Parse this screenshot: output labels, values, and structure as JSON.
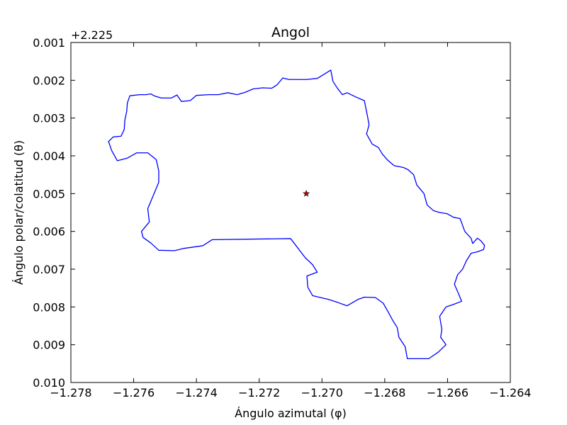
{
  "chart_data": {
    "type": "line",
    "title": "Angol",
    "xlabel": "Ángulo azimutal (φ)",
    "ylabel": "Ángulo polar/colatitud (θ)",
    "y_offset_text": "+2.225",
    "xlim": [
      -1.278,
      -1.264
    ],
    "ylim": [
      0.01,
      0.001
    ],
    "y_inverted": true,
    "grid": false,
    "xticks": [
      -1.278,
      -1.276,
      -1.274,
      -1.272,
      -1.27,
      -1.268,
      -1.266,
      -1.264
    ],
    "xtick_labels": [
      "−1.278",
      "−1.276",
      "−1.274",
      "−1.272",
      "−1.270",
      "−1.268",
      "−1.266",
      "−1.264"
    ],
    "yticks": [
      0.001,
      0.002,
      0.003,
      0.004,
      0.005,
      0.006,
      0.007,
      0.008,
      0.009,
      0.01
    ],
    "ytick_labels": [
      "0.001",
      "0.002",
      "0.003",
      "0.004",
      "0.005",
      "0.006",
      "0.007",
      "0.008",
      "0.009",
      "0.010"
    ],
    "series": [
      {
        "type": "line",
        "color": "#0000ff",
        "points": [
          [
            -1.27535,
            0.00241
          ],
          [
            -1.27512,
            0.00247
          ],
          [
            -1.2748,
            0.00247
          ],
          [
            -1.27462,
            0.00239
          ],
          [
            -1.27448,
            0.00256
          ],
          [
            -1.2742,
            0.00254
          ],
          [
            -1.274,
            0.0024
          ],
          [
            -1.2736,
            0.00238
          ],
          [
            -1.2733,
            0.00238
          ],
          [
            -1.273,
            0.00233
          ],
          [
            -1.2727,
            0.00238
          ],
          [
            -1.27245,
            0.00232
          ],
          [
            -1.2722,
            0.00223
          ],
          [
            -1.2719,
            0.0022
          ],
          [
            -1.2716,
            0.00221
          ],
          [
            -1.27143,
            0.00212
          ],
          [
            -1.27125,
            0.00194
          ],
          [
            -1.27105,
            0.00198
          ],
          [
            -1.2705,
            0.00198
          ],
          [
            -1.27015,
            0.00195
          ],
          [
            -1.26995,
            0.00185
          ],
          [
            -1.26972,
            0.00173
          ],
          [
            -1.26965,
            0.00203
          ],
          [
            -1.2695,
            0.00222
          ],
          [
            -1.26935,
            0.00238
          ],
          [
            -1.2692,
            0.00233
          ],
          [
            -1.2689,
            0.00245
          ],
          [
            -1.26865,
            0.00254
          ],
          [
            -1.26855,
            0.00295
          ],
          [
            -1.2685,
            0.00318
          ],
          [
            -1.26858,
            0.00342
          ],
          [
            -1.2684,
            0.00369
          ],
          [
            -1.2682,
            0.00378
          ],
          [
            -1.26808,
            0.00395
          ],
          [
            -1.2679,
            0.00412
          ],
          [
            -1.2677,
            0.00426
          ],
          [
            -1.2674,
            0.00431
          ],
          [
            -1.26725,
            0.00437
          ],
          [
            -1.26708,
            0.0045
          ],
          [
            -1.26698,
            0.00477
          ],
          [
            -1.26675,
            0.005
          ],
          [
            -1.26665,
            0.0053
          ],
          [
            -1.26645,
            0.00545
          ],
          [
            -1.26625,
            0.0055
          ],
          [
            -1.26602,
            0.00553
          ],
          [
            -1.2658,
            0.00563
          ],
          [
            -1.2656,
            0.00566
          ],
          [
            -1.26545,
            0.006
          ],
          [
            -1.26525,
            0.00618
          ],
          [
            -1.2652,
            0.00632
          ],
          [
            -1.26505,
            0.00618
          ],
          [
            -1.26495,
            0.00624
          ],
          [
            -1.26482,
            0.00637
          ],
          [
            -1.26485,
            0.00648
          ],
          [
            -1.26505,
            0.00654
          ],
          [
            -1.26525,
            0.00658
          ],
          [
            -1.2654,
            0.00678
          ],
          [
            -1.26552,
            0.007
          ],
          [
            -1.26568,
            0.00715
          ],
          [
            -1.26578,
            0.0074
          ],
          [
            -1.26565,
            0.00765
          ],
          [
            -1.26555,
            0.00785
          ],
          [
            -1.2658,
            0.00793
          ],
          [
            -1.26605,
            0.008
          ],
          [
            -1.26625,
            0.00825
          ],
          [
            -1.26618,
            0.0086
          ],
          [
            -1.26622,
            0.0088
          ],
          [
            -1.26605,
            0.009
          ],
          [
            -1.2663,
            0.0092
          ],
          [
            -1.2666,
            0.00937
          ],
          [
            -1.26695,
            0.00937
          ],
          [
            -1.26728,
            0.00937
          ],
          [
            -1.26735,
            0.00905
          ],
          [
            -1.26755,
            0.0088
          ],
          [
            -1.2676,
            0.00855
          ],
          [
            -1.26775,
            0.00835
          ],
          [
            -1.2679,
            0.00812
          ],
          [
            -1.26805,
            0.0079
          ],
          [
            -1.2683,
            0.00775
          ],
          [
            -1.26865,
            0.00774
          ],
          [
            -1.26885,
            0.0078
          ],
          [
            -1.2692,
            0.00797
          ],
          [
            -1.2695,
            0.00788
          ],
          [
            -1.2698,
            0.0078
          ],
          [
            -1.2701,
            0.00774
          ],
          [
            -1.2703,
            0.0077
          ],
          [
            -1.27045,
            0.00748
          ],
          [
            -1.27048,
            0.00718
          ],
          [
            -1.27015,
            0.00708
          ],
          [
            -1.2703,
            0.00688
          ],
          [
            -1.27053,
            0.0067
          ],
          [
            -1.271,
            0.00619
          ],
          [
            -1.2735,
            0.00622
          ],
          [
            -1.2738,
            0.00638
          ],
          [
            -1.2744,
            0.00645
          ],
          [
            -1.2747,
            0.00651
          ],
          [
            -1.2752,
            0.0065
          ],
          [
            -1.27545,
            0.00631
          ],
          [
            -1.2757,
            0.00616
          ],
          [
            -1.27575,
            0.006
          ],
          [
            -1.2755,
            0.00575
          ],
          [
            -1.27555,
            0.0054
          ],
          [
            -1.27535,
            0.005
          ],
          [
            -1.2752,
            0.0047
          ],
          [
            -1.2752,
            0.0044
          ],
          [
            -1.27528,
            0.0041
          ],
          [
            -1.27555,
            0.00392
          ],
          [
            -1.2759,
            0.00392
          ],
          [
            -1.2762,
            0.00406
          ],
          [
            -1.27652,
            0.00413
          ],
          [
            -1.2767,
            0.00386
          ],
          [
            -1.2768,
            0.00362
          ],
          [
            -1.27665,
            0.0035
          ],
          [
            -1.2764,
            0.00348
          ],
          [
            -1.2763,
            0.0033
          ],
          [
            -1.27628,
            0.00305
          ],
          [
            -1.27622,
            0.00282
          ],
          [
            -1.2762,
            0.0026
          ],
          [
            -1.27612,
            0.00241
          ],
          [
            -1.2758,
            0.00238
          ],
          [
            -1.2756,
            0.00238
          ],
          [
            -1.27545,
            0.00236
          ],
          [
            -1.27535,
            0.00241
          ]
        ]
      },
      {
        "type": "marker",
        "marker": "star",
        "color": "#cc0000",
        "edgecolor": "#000000",
        "points": [
          [
            -1.2705,
            0.005
          ]
        ]
      }
    ]
  }
}
